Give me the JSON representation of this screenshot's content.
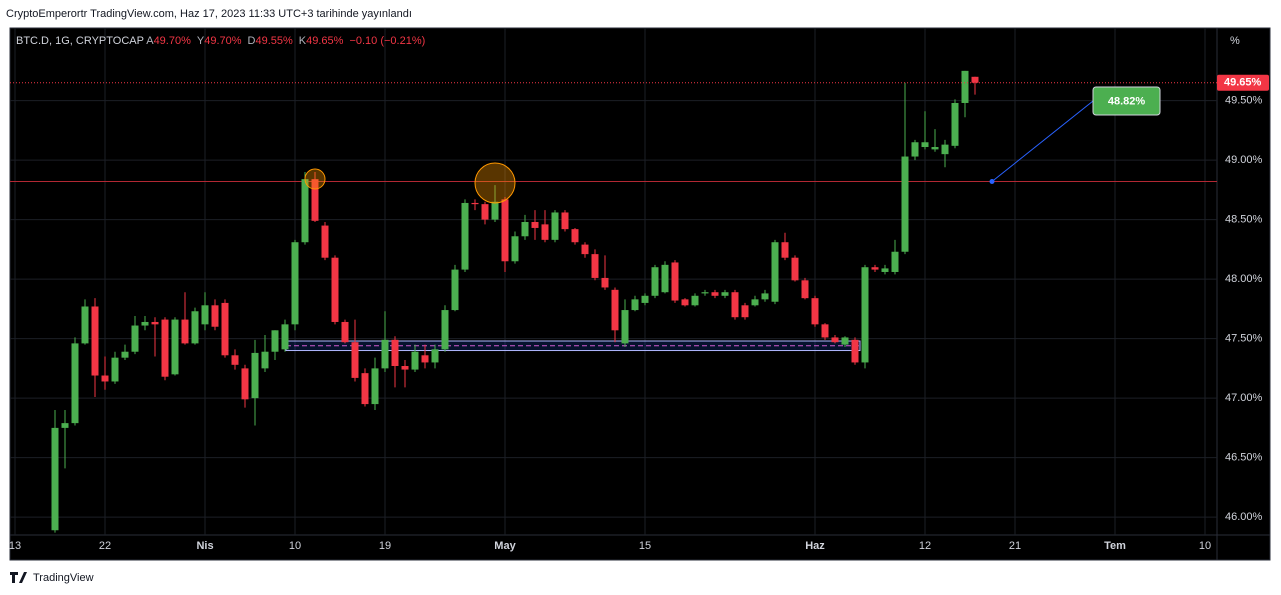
{
  "header": "CryptoEmperortr TradingView.com, Haz 17, 2023 11:33 UTC+3 tarihinde yayınlandı",
  "footer": "TradingView",
  "chart_data": {
    "type": "candlestick",
    "symbol": "BTC.D, 1G, CRYPTOCAP",
    "legend_items": [
      {
        "key": "A",
        "value": "49.70%"
      },
      {
        "key": "Y",
        "value": "49.70%"
      },
      {
        "key": "D",
        "value": "49.55%"
      },
      {
        "key": "K",
        "value": "49.65%"
      }
    ],
    "change": "−0.10 (−0.21%)",
    "axis_unit": "%",
    "up_color": "#4caf50",
    "down_color": "#f23645",
    "grid": true,
    "xlim": [
      "2023-03-12",
      "2023-07-11"
    ],
    "xticks": [
      {
        "value": "2023-03-13",
        "label": "13"
      },
      {
        "value": "2023-03-22",
        "label": "22"
      },
      {
        "value": "2023-04-01",
        "label": "Nis"
      },
      {
        "value": "2023-04-10",
        "label": "10"
      },
      {
        "value": "2023-04-19",
        "label": "19"
      },
      {
        "value": "2023-05-01",
        "label": "May"
      },
      {
        "value": "2023-05-15",
        "label": "15"
      },
      {
        "value": "2023-06-01",
        "label": "Haz"
      },
      {
        "value": "2023-06-12",
        "label": "12"
      },
      {
        "value": "2023-06-21",
        "label": "21"
      },
      {
        "value": "2023-07-01",
        "label": "Tem"
      },
      {
        "value": "2023-07-10",
        "label": "10"
      }
    ],
    "ylim": [
      45.85,
      50.11
    ],
    "yticks": [
      {
        "value": 46,
        "label": "46.00%"
      },
      {
        "value": 46.5,
        "label": "46.50%"
      },
      {
        "value": 47,
        "label": "47.00%"
      },
      {
        "value": 47.5,
        "label": "47.50%"
      },
      {
        "value": 48,
        "label": "48.00%"
      },
      {
        "value": 48.5,
        "label": "48.50%"
      },
      {
        "value": 49,
        "label": "49.00%"
      },
      {
        "value": 49.5,
        "label": "49.50%"
      }
    ],
    "x": [
      "2023-03-17",
      "2023-03-18",
      "2023-03-19",
      "2023-03-20",
      "2023-03-21",
      "2023-03-22",
      "2023-03-23",
      "2023-03-24",
      "2023-03-25",
      "2023-03-26",
      "2023-03-27",
      "2023-03-28",
      "2023-03-29",
      "2023-03-30",
      "2023-03-31",
      "2023-04-01",
      "2023-04-02",
      "2023-04-03",
      "2023-04-04",
      "2023-04-05",
      "2023-04-06",
      "2023-04-07",
      "2023-04-08",
      "2023-04-09",
      "2023-04-10",
      "2023-04-11",
      "2023-04-12",
      "2023-04-13",
      "2023-04-14",
      "2023-04-15",
      "2023-04-16",
      "2023-04-17",
      "2023-04-18",
      "2023-04-19",
      "2023-04-20",
      "2023-04-21",
      "2023-04-22",
      "2023-04-23",
      "2023-04-24",
      "2023-04-25",
      "2023-04-26",
      "2023-04-27",
      "2023-04-28",
      "2023-04-29",
      "2023-04-30",
      "2023-05-01",
      "2023-05-02",
      "2023-05-03",
      "2023-05-04",
      "2023-05-05",
      "2023-05-06",
      "2023-05-07",
      "2023-05-08",
      "2023-05-09",
      "2023-05-10",
      "2023-05-11",
      "2023-05-12",
      "2023-05-13",
      "2023-05-14",
      "2023-05-15",
      "2023-05-16",
      "2023-05-17",
      "2023-05-18",
      "2023-05-19",
      "2023-05-20",
      "2023-05-21",
      "2023-05-22",
      "2023-05-23",
      "2023-05-24",
      "2023-05-25",
      "2023-05-26",
      "2023-05-27",
      "2023-05-28",
      "2023-05-29",
      "2023-05-30",
      "2023-05-31",
      "2023-06-01",
      "2023-06-02",
      "2023-06-03",
      "2023-06-04",
      "2023-06-05",
      "2023-06-06",
      "2023-06-07",
      "2023-06-08",
      "2023-06-09",
      "2023-06-10",
      "2023-06-11",
      "2023-06-12",
      "2023-06-13",
      "2023-06-14",
      "2023-06-15",
      "2023-06-16",
      "2023-06-17"
    ],
    "open": [
      45.89,
      46.75,
      46.79,
      47.46,
      47.77,
      47.19,
      47.14,
      47.34,
      47.39,
      47.61,
      47.64,
      47.66,
      47.2,
      47.66,
      47.46,
      47.62,
      47.78,
      47.8,
      47.36,
      47.25,
      47.0,
      47.25,
      47.39,
      47.41,
      47.62,
      48.31,
      48.84,
      48.45,
      48.18,
      47.64,
      47.47,
      47.21,
      46.95,
      47.25,
      47.49,
      47.27,
      47.24,
      47.36,
      47.3,
      47.41,
      47.74,
      48.08,
      48.64,
      48.63,
      48.5,
      48.67,
      48.15,
      48.36,
      48.48,
      48.46,
      48.33,
      48.56,
      48.42,
      48.29,
      48.21,
      48.01,
      47.91,
      47.46,
      47.74,
      47.8,
      47.86,
      47.89,
      48.14,
      47.83,
      47.78,
      47.88,
      47.89,
      47.86,
      47.89,
      47.78,
      47.78,
      47.83,
      47.81,
      48.31,
      48.18,
      47.99,
      47.84,
      47.62,
      47.51,
      47.45,
      47.49,
      47.3,
      48.1,
      48.06,
      48.06,
      48.23,
      49.03,
      49.11,
      49.09,
      49.05,
      49.12,
      49.48,
      49.7
    ],
    "high": [
      46.9,
      46.9,
      47.51,
      47.83,
      47.84,
      47.35,
      47.39,
      47.45,
      47.69,
      47.69,
      47.68,
      47.68,
      47.68,
      47.89,
      47.76,
      47.89,
      47.83,
      47.83,
      47.41,
      47.28,
      47.49,
      47.53,
      47.57,
      47.66,
      48.33,
      48.9,
      48.9,
      48.48,
      48.2,
      47.66,
      47.66,
      47.25,
      47.34,
      47.73,
      47.52,
      47.32,
      47.45,
      47.45,
      47.45,
      47.78,
      48.12,
      48.67,
      48.67,
      48.65,
      48.79,
      48.69,
      48.4,
      48.54,
      48.58,
      48.58,
      48.58,
      48.58,
      48.43,
      48.31,
      48.25,
      48.2,
      47.93,
      47.83,
      47.86,
      47.88,
      48.12,
      48.15,
      48.16,
      47.84,
      47.88,
      47.91,
      47.91,
      47.91,
      47.91,
      47.8,
      47.86,
      47.91,
      48.33,
      48.39,
      48.2,
      48.01,
      47.86,
      47.63,
      47.53,
      47.52,
      47.51,
      48.12,
      48.12,
      48.12,
      48.33,
      49.65,
      49.17,
      49.41,
      49.26,
      49.17,
      49.51,
      49.75,
      49.7
    ],
    "low": [
      45.87,
      46.41,
      46.77,
      47.45,
      47.01,
      47.07,
      47.12,
      47.32,
      47.37,
      47.57,
      47.35,
      47.15,
      47.19,
      47.45,
      47.45,
      47.57,
      47.57,
      47.34,
      47.24,
      46.92,
      46.77,
      47.22,
      47.32,
      47.39,
      47.57,
      48.29,
      48.48,
      48.16,
      47.62,
      47.46,
      47.14,
      46.93,
      46.9,
      47.22,
      47.09,
      47.09,
      47.22,
      47.25,
      47.25,
      47.39,
      47.73,
      48.06,
      48.58,
      48.46,
      48.48,
      48.06,
      48.13,
      48.33,
      48.33,
      48.31,
      48.31,
      48.4,
      48.29,
      48.18,
      47.99,
      47.91,
      47.47,
      47.43,
      47.73,
      47.78,
      47.84,
      47.88,
      47.8,
      47.77,
      47.77,
      47.86,
      47.84,
      47.84,
      47.66,
      47.66,
      47.77,
      47.81,
      47.79,
      48.16,
      47.98,
      47.83,
      47.6,
      47.49,
      47.46,
      47.43,
      47.28,
      47.25,
      48.06,
      48.04,
      48.04,
      48.21,
      49.0,
      49.09,
      49.07,
      48.94,
      49.1,
      49.36,
      49.55
    ],
    "close": [
      46.75,
      46.79,
      47.46,
      47.77,
      47.19,
      47.14,
      47.34,
      47.39,
      47.61,
      47.64,
      47.62,
      47.18,
      47.66,
      47.46,
      47.73,
      47.78,
      47.6,
      47.36,
      47.28,
      46.99,
      47.38,
      47.39,
      47.57,
      47.62,
      48.31,
      48.84,
      48.49,
      48.18,
      47.64,
      47.47,
      47.17,
      46.95,
      47.25,
      47.49,
      47.27,
      47.24,
      47.39,
      47.3,
      47.41,
      47.74,
      48.08,
      48.64,
      48.63,
      48.5,
      48.65,
      48.15,
      48.36,
      48.48,
      48.43,
      48.33,
      48.56,
      48.42,
      48.31,
      48.21,
      48.01,
      47.93,
      47.57,
      47.74,
      47.83,
      47.86,
      48.1,
      48.12,
      47.82,
      47.78,
      47.86,
      47.89,
      47.86,
      47.89,
      47.68,
      47.68,
      47.83,
      47.88,
      48.31,
      48.18,
      47.99,
      47.84,
      47.62,
      47.51,
      47.47,
      47.51,
      47.3,
      48.1,
      48.08,
      48.09,
      48.23,
      49.03,
      49.15,
      49.15,
      49.11,
      49.13,
      49.48,
      49.75,
      49.65
    ],
    "last_price": {
      "value": 49.65,
      "label": "49.65%",
      "color": "#f23645"
    },
    "level": {
      "value": 48.82,
      "label": "48.82%",
      "color": "#b22833",
      "label_color": "#4caf50"
    },
    "zone": [
      47.4,
      47.48
    ]
  }
}
